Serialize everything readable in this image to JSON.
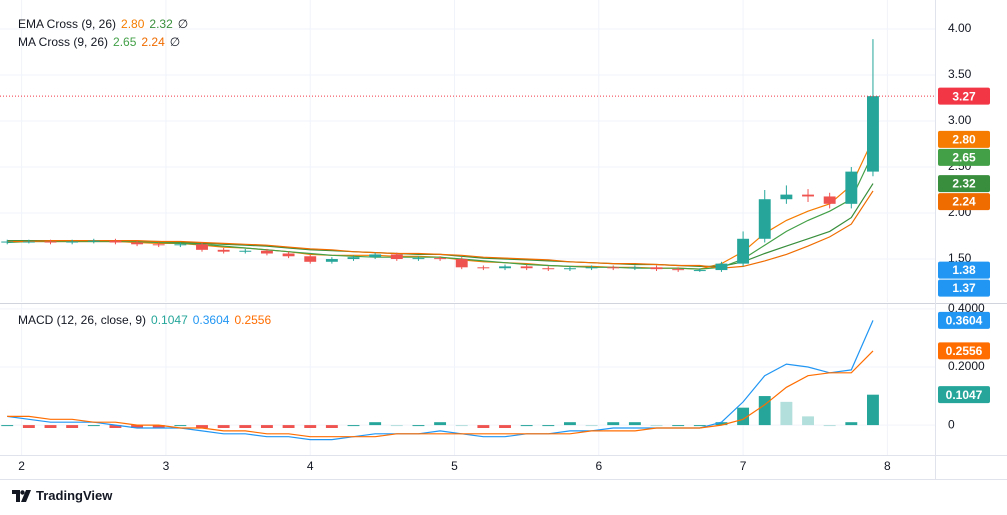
{
  "brand": "TradingView",
  "chart_data": [
    {
      "type": "candlestick",
      "x": [
        1.9,
        2.05,
        2.2,
        2.35,
        2.5,
        2.65,
        2.8,
        2.95,
        3.1,
        3.25,
        3.4,
        3.55,
        3.7,
        3.85,
        4.0,
        4.15,
        4.3,
        4.45,
        4.6,
        4.75,
        4.9,
        5.05,
        5.2,
        5.35,
        5.5,
        5.65,
        5.8,
        5.95,
        6.1,
        6.25,
        6.4,
        6.55,
        6.7,
        6.85,
        7.0,
        7.15,
        7.3,
        7.45,
        7.6,
        7.75,
        7.9
      ],
      "open": [
        1.68,
        1.69,
        1.69,
        1.68,
        1.69,
        1.7,
        1.68,
        1.66,
        1.65,
        1.66,
        1.6,
        1.58,
        1.59,
        1.56,
        1.53,
        1.47,
        1.5,
        1.52,
        1.55,
        1.5,
        1.51,
        1.5,
        1.41,
        1.4,
        1.42,
        1.4,
        1.39,
        1.4,
        1.41,
        1.4,
        1.41,
        1.39,
        1.38,
        1.38,
        1.45,
        1.72,
        2.15,
        2.2,
        2.18,
        2.1,
        2.45
      ],
      "high": [
        1.71,
        1.71,
        1.71,
        1.71,
        1.72,
        1.72,
        1.7,
        1.68,
        1.68,
        1.68,
        1.62,
        1.61,
        1.61,
        1.58,
        1.55,
        1.52,
        1.54,
        1.57,
        1.57,
        1.53,
        1.53,
        1.52,
        1.43,
        1.44,
        1.44,
        1.42,
        1.42,
        1.43,
        1.43,
        1.43,
        1.43,
        1.41,
        1.4,
        1.47,
        1.8,
        2.25,
        2.3,
        2.26,
        2.22,
        2.5,
        3.89
      ],
      "low": [
        1.66,
        1.67,
        1.66,
        1.66,
        1.67,
        1.66,
        1.64,
        1.63,
        1.63,
        1.58,
        1.56,
        1.56,
        1.54,
        1.51,
        1.45,
        1.45,
        1.48,
        1.5,
        1.48,
        1.48,
        1.48,
        1.39,
        1.38,
        1.38,
        1.38,
        1.37,
        1.37,
        1.38,
        1.38,
        1.38,
        1.37,
        1.36,
        1.36,
        1.36,
        1.42,
        1.68,
        2.1,
        2.12,
        2.05,
        2.05,
        2.4
      ],
      "close": [
        1.69,
        1.69,
        1.68,
        1.69,
        1.7,
        1.68,
        1.66,
        1.65,
        1.66,
        1.6,
        1.58,
        1.59,
        1.56,
        1.53,
        1.47,
        1.5,
        1.52,
        1.55,
        1.5,
        1.51,
        1.5,
        1.41,
        1.4,
        1.42,
        1.4,
        1.39,
        1.4,
        1.41,
        1.4,
        1.41,
        1.39,
        1.38,
        1.38,
        1.45,
        1.72,
        2.15,
        2.2,
        2.18,
        2.1,
        2.45,
        3.27
      ],
      "up_color": "#26a69a",
      "down_color": "#ef5350",
      "last_price_color": "#f23645",
      "indicators": [
        {
          "label": "EMA Cross (9, 26)",
          "lines": [
            {
              "color": "#f57c00",
              "last_label": "2.80",
              "values": [
                1.69,
                1.69,
                1.69,
                1.69,
                1.69,
                1.69,
                1.68,
                1.67,
                1.67,
                1.65,
                1.63,
                1.62,
                1.6,
                1.58,
                1.55,
                1.54,
                1.54,
                1.54,
                1.53,
                1.53,
                1.52,
                1.49,
                1.47,
                1.46,
                1.45,
                1.43,
                1.42,
                1.42,
                1.41,
                1.41,
                1.4,
                1.4,
                1.39,
                1.45,
                1.58,
                1.78,
                1.92,
                2.02,
                2.1,
                2.3,
                2.8
              ]
            },
            {
              "color": "#388e3c",
              "last_label": "2.32",
              "values": [
                1.7,
                1.7,
                1.7,
                1.7,
                1.7,
                1.7,
                1.69,
                1.69,
                1.68,
                1.67,
                1.66,
                1.65,
                1.64,
                1.62,
                1.6,
                1.59,
                1.58,
                1.57,
                1.56,
                1.55,
                1.55,
                1.53,
                1.51,
                1.5,
                1.49,
                1.48,
                1.47,
                1.46,
                1.45,
                1.44,
                1.44,
                1.43,
                1.42,
                1.42,
                1.47,
                1.56,
                1.64,
                1.72,
                1.8,
                1.95,
                2.32
              ]
            }
          ]
        },
        {
          "label": "MA Cross (9, 26)",
          "lines": [
            {
              "color": "#43a047",
              "last_label": "2.65",
              "values": [
                1.68,
                1.69,
                1.69,
                1.69,
                1.69,
                1.69,
                1.69,
                1.68,
                1.67,
                1.66,
                1.64,
                1.62,
                1.6,
                1.58,
                1.56,
                1.54,
                1.53,
                1.52,
                1.52,
                1.52,
                1.52,
                1.5,
                1.48,
                1.46,
                1.44,
                1.43,
                1.42,
                1.41,
                1.41,
                1.4,
                1.4,
                1.4,
                1.39,
                1.41,
                1.5,
                1.65,
                1.8,
                1.92,
                2.02,
                2.15,
                2.65
              ]
            },
            {
              "color": "#ef6c00",
              "last_label": "2.24",
              "values": [
                1.69,
                1.69,
                1.7,
                1.7,
                1.7,
                1.7,
                1.7,
                1.69,
                1.69,
                1.68,
                1.67,
                1.66,
                1.65,
                1.63,
                1.61,
                1.6,
                1.58,
                1.57,
                1.56,
                1.56,
                1.55,
                1.54,
                1.52,
                1.51,
                1.5,
                1.49,
                1.47,
                1.46,
                1.45,
                1.45,
                1.44,
                1.43,
                1.43,
                1.4,
                1.42,
                1.48,
                1.55,
                1.64,
                1.74,
                1.88,
                2.24
              ]
            }
          ]
        }
      ],
      "marker_tags": {
        "color": "#2196f3",
        "values": [
          1.38,
          1.37
        ]
      },
      "xlim": [
        1.85,
        8.33
      ],
      "ylim": [
        1.033,
        4.315
      ],
      "yticks": [
        {
          "value": 1.5,
          "label": "1.50"
        },
        {
          "value": 2,
          "label": "2.00"
        },
        {
          "value": 2.5,
          "label": "2.50"
        },
        {
          "value": 3,
          "label": "3.00"
        },
        {
          "value": 3.5,
          "label": "3.50"
        },
        {
          "value": 4,
          "label": "4.00"
        }
      ],
      "grid": true
    },
    {
      "type": "macd",
      "label": "MACD (12, 26, close, 9)",
      "macd": {
        "color": "#2196f3",
        "values": [
          0.03,
          0.02,
          0.01,
          0.01,
          0.01,
          0.0,
          -0.01,
          -0.01,
          -0.01,
          -0.02,
          -0.03,
          -0.03,
          -0.04,
          -0.04,
          -0.05,
          -0.05,
          -0.04,
          -0.03,
          -0.03,
          -0.03,
          -0.02,
          -0.03,
          -0.04,
          -0.04,
          -0.03,
          -0.03,
          -0.02,
          -0.02,
          -0.01,
          -0.01,
          -0.01,
          -0.01,
          -0.01,
          0.01,
          0.08,
          0.17,
          0.21,
          0.2,
          0.18,
          0.19,
          0.3604
        ]
      },
      "signal": {
        "color": "#ff6d00",
        "values": [
          0.03,
          0.03,
          0.02,
          0.02,
          0.01,
          0.01,
          0.0,
          0.0,
          -0.01,
          -0.01,
          -0.02,
          -0.02,
          -0.03,
          -0.03,
          -0.04,
          -0.04,
          -0.04,
          -0.04,
          -0.03,
          -0.03,
          -0.03,
          -0.03,
          -0.03,
          -0.03,
          -0.03,
          -0.03,
          -0.03,
          -0.02,
          -0.02,
          -0.02,
          -0.01,
          -0.01,
          -0.01,
          0.0,
          0.02,
          0.07,
          0.13,
          0.17,
          0.18,
          0.18,
          0.2556
        ]
      },
      "histogram": {
        "colors": [
          "#26a69a",
          "#b2dfdb",
          "#ef5350",
          "#ffcdd2"
        ],
        "values": [
          0,
          -0.01,
          -0.01,
          -0.01,
          0,
          -0.01,
          -0.01,
          -0.01,
          0,
          -0.01,
          -0.01,
          -0.01,
          -0.01,
          -0.01,
          -0.01,
          -0.01,
          0,
          0.01,
          0,
          0,
          0.01,
          0,
          -0.01,
          -0.01,
          0,
          0,
          0.01,
          0,
          0.01,
          0.01,
          0,
          0,
          0,
          0.01,
          0.06,
          0.1,
          0.08,
          0.03,
          0,
          0.01,
          0.1047
        ]
      },
      "xlim": [
        1.85,
        8.33
      ],
      "ylim": [
        -0.103,
        0.417
      ],
      "yticks": [
        0,
        {
          "value": 0.2,
          "label": "0.2000"
        },
        {
          "value": 0.4,
          "label": "0.4000"
        }
      ],
      "xticks": [
        2,
        3,
        4,
        5,
        6,
        7,
        8
      ],
      "grid": true
    }
  ]
}
